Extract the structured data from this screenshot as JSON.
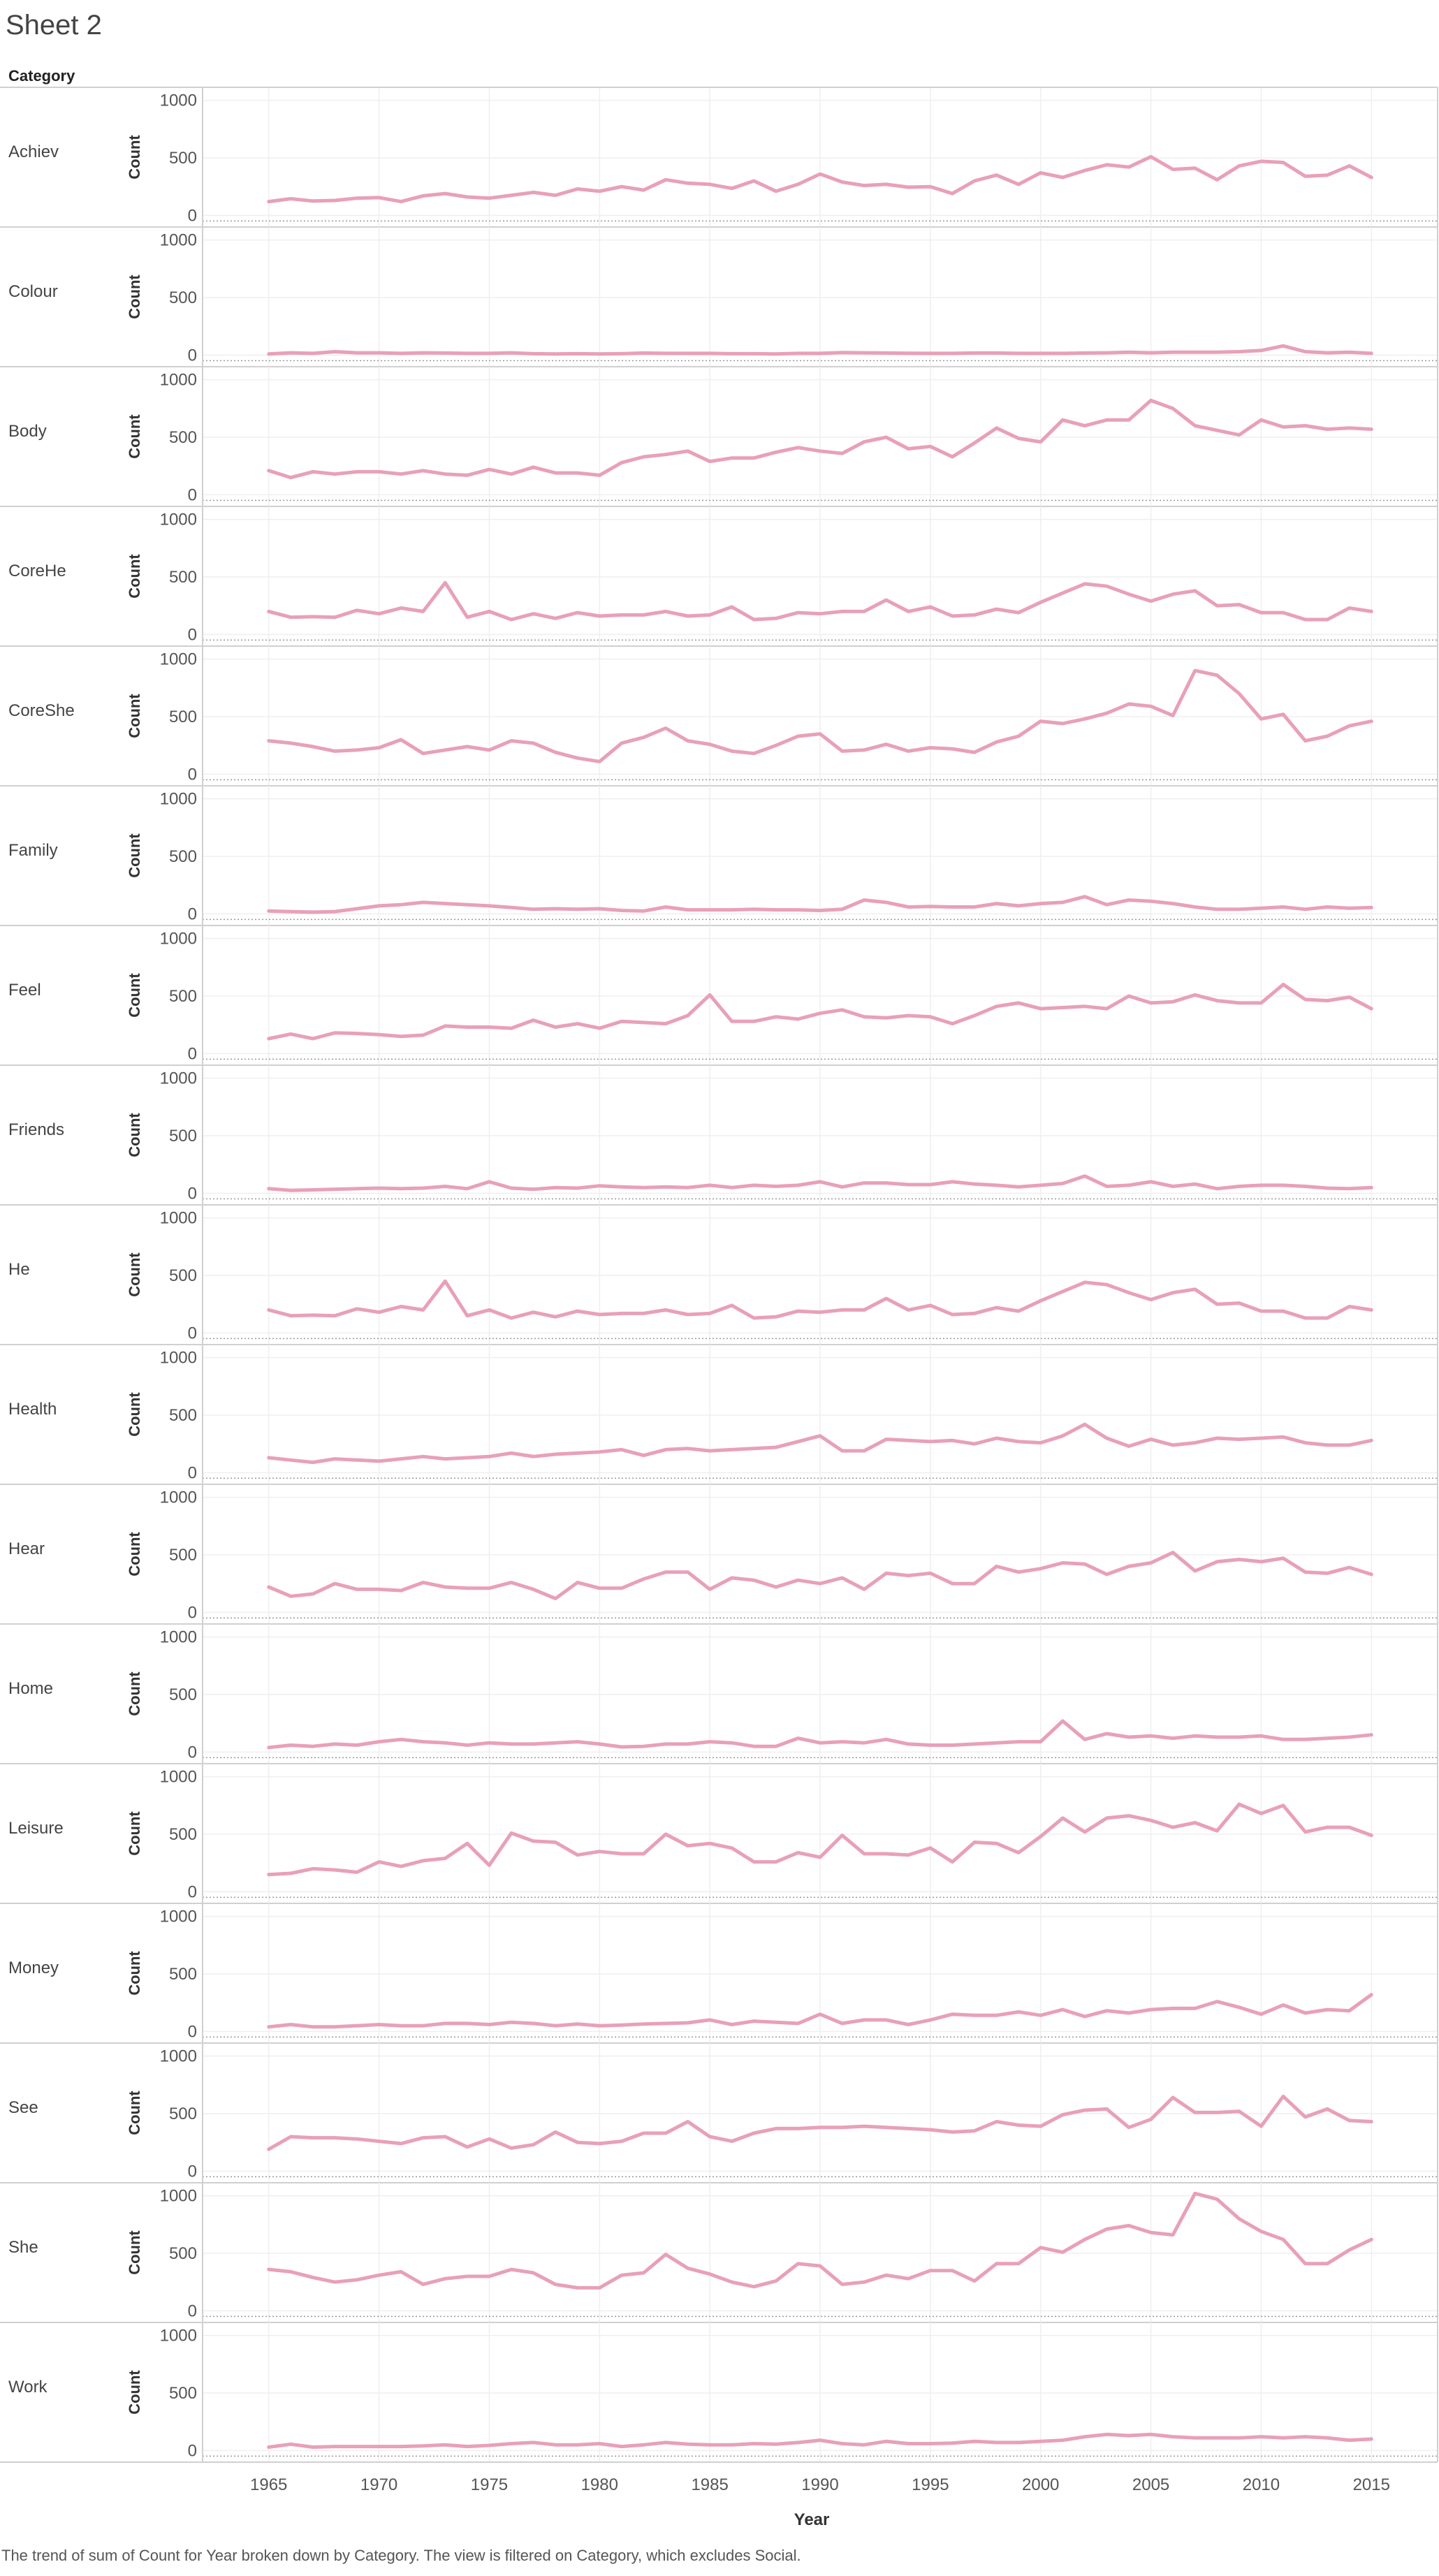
{
  "sheet_title": "Sheet 2",
  "caption": "The trend of sum of Count for Year broken down by Category. The view is filtered on Category, which excludes Social.",
  "colors": {
    "line": "#E8A0B8",
    "grid": "#EFEFEF",
    "border": "#D0D0D0",
    "zero_line": "#999999"
  },
  "chart_data": {
    "type": "line",
    "row_header": "Category",
    "xlabel": "Year",
    "ylabel": "Count",
    "xlim": [
      1962,
      2018
    ],
    "ylim": [
      -40,
      1040
    ],
    "xticks": [
      1965,
      1970,
      1975,
      1980,
      1985,
      1990,
      1995,
      2000,
      2005,
      2010,
      2015
    ],
    "yticks": [
      0,
      500,
      1000
    ],
    "grid": true,
    "x": [
      1965,
      1966,
      1967,
      1968,
      1969,
      1970,
      1971,
      1972,
      1973,
      1974,
      1975,
      1976,
      1977,
      1978,
      1979,
      1980,
      1981,
      1982,
      1983,
      1984,
      1985,
      1986,
      1987,
      1988,
      1989,
      1990,
      1991,
      1992,
      1993,
      1994,
      1995,
      1996,
      1997,
      1998,
      1999,
      2000,
      2001,
      2002,
      2003,
      2004,
      2005,
      2006,
      2007,
      2008,
      2009,
      2010,
      2011,
      2012,
      2013,
      2014,
      2015
    ],
    "series": [
      {
        "name": "Achiev",
        "values": [
          120,
          145,
          125,
          130,
          150,
          155,
          120,
          170,
          190,
          160,
          150,
          175,
          200,
          175,
          230,
          210,
          250,
          220,
          310,
          280,
          270,
          235,
          300,
          210,
          270,
          360,
          290,
          260,
          270,
          245,
          250,
          190,
          300,
          350,
          270,
          370,
          330,
          390,
          440,
          420,
          510,
          400,
          410,
          310,
          430,
          470,
          460,
          340,
          350,
          430,
          330
        ]
      },
      {
        "name": "Colour",
        "values": [
          10,
          20,
          15,
          30,
          20,
          20,
          15,
          20,
          18,
          15,
          15,
          20,
          12,
          10,
          12,
          10,
          12,
          18,
          15,
          15,
          15,
          12,
          12,
          10,
          15,
          15,
          22,
          20,
          18,
          16,
          15,
          15,
          18,
          18,
          15,
          15,
          15,
          18,
          20,
          25,
          20,
          25,
          25,
          25,
          30,
          40,
          80,
          30,
          20,
          25,
          15
        ]
      },
      {
        "name": "Body",
        "values": [
          210,
          150,
          200,
          180,
          200,
          200,
          180,
          210,
          180,
          170,
          220,
          180,
          240,
          190,
          190,
          170,
          280,
          330,
          350,
          380,
          290,
          320,
          320,
          370,
          410,
          380,
          360,
          460,
          500,
          400,
          420,
          330,
          450,
          580,
          490,
          460,
          650,
          600,
          650,
          650,
          820,
          750,
          600,
          560,
          520,
          650,
          590,
          600,
          570,
          580,
          570
        ]
      },
      {
        "name": "CoreHe",
        "values": [
          200,
          150,
          155,
          150,
          210,
          180,
          230,
          200,
          450,
          150,
          200,
          130,
          180,
          140,
          190,
          160,
          170,
          170,
          200,
          160,
          170,
          240,
          130,
          140,
          190,
          180,
          200,
          200,
          300,
          200,
          240,
          160,
          170,
          220,
          190,
          280,
          360,
          440,
          420,
          350,
          290,
          350,
          380,
          250,
          260,
          190,
          190,
          130,
          130,
          230,
          200
        ]
      },
      {
        "name": "CoreShe",
        "values": [
          290,
          270,
          240,
          200,
          210,
          230,
          300,
          180,
          210,
          240,
          210,
          290,
          270,
          190,
          140,
          110,
          270,
          320,
          400,
          290,
          260,
          200,
          180,
          250,
          330,
          350,
          200,
          210,
          260,
          200,
          230,
          220,
          190,
          280,
          330,
          460,
          440,
          480,
          530,
          610,
          590,
          510,
          900,
          860,
          700,
          480,
          520,
          290,
          330,
          420,
          460
        ]
      },
      {
        "name": "Family",
        "values": [
          25,
          20,
          15,
          20,
          45,
          70,
          80,
          100,
          90,
          80,
          70,
          55,
          40,
          45,
          40,
          45,
          30,
          25,
          60,
          35,
          35,
          35,
          40,
          35,
          35,
          30,
          40,
          120,
          100,
          60,
          65,
          60,
          60,
          90,
          70,
          90,
          100,
          150,
          80,
          120,
          110,
          90,
          60,
          40,
          40,
          50,
          60,
          40,
          60,
          50,
          55
        ]
      },
      {
        "name": "Feel",
        "values": [
          130,
          170,
          130,
          180,
          175,
          165,
          150,
          160,
          240,
          230,
          230,
          220,
          290,
          230,
          260,
          220,
          280,
          270,
          260,
          330,
          510,
          280,
          280,
          320,
          300,
          350,
          380,
          320,
          310,
          330,
          320,
          260,
          330,
          410,
          440,
          390,
          400,
          410,
          390,
          500,
          440,
          450,
          510,
          460,
          440,
          440,
          600,
          470,
          460,
          490,
          390
        ]
      },
      {
        "name": "Friends",
        "values": [
          40,
          25,
          30,
          35,
          40,
          45,
          40,
          45,
          60,
          40,
          100,
          45,
          35,
          50,
          45,
          65,
          55,
          50,
          55,
          50,
          70,
          50,
          70,
          60,
          70,
          100,
          55,
          90,
          90,
          75,
          75,
          100,
          80,
          70,
          55,
          70,
          85,
          150,
          60,
          70,
          100,
          60,
          80,
          40,
          60,
          70,
          70,
          60,
          45,
          40,
          50
        ]
      },
      {
        "name": "He",
        "values": [
          200,
          150,
          155,
          150,
          210,
          180,
          230,
          200,
          450,
          150,
          200,
          130,
          180,
          140,
          190,
          160,
          170,
          170,
          200,
          160,
          170,
          240,
          130,
          140,
          190,
          180,
          200,
          200,
          300,
          200,
          240,
          160,
          170,
          220,
          190,
          280,
          360,
          440,
          420,
          350,
          290,
          350,
          380,
          250,
          260,
          190,
          190,
          130,
          130,
          230,
          200
        ]
      },
      {
        "name": "Health",
        "values": [
          130,
          110,
          90,
          120,
          110,
          100,
          120,
          140,
          120,
          130,
          140,
          170,
          140,
          160,
          170,
          180,
          200,
          150,
          200,
          210,
          190,
          200,
          210,
          220,
          270,
          320,
          190,
          190,
          290,
          280,
          270,
          280,
          250,
          300,
          270,
          260,
          320,
          420,
          300,
          230,
          290,
          240,
          260,
          300,
          290,
          300,
          310,
          260,
          240,
          240,
          280
        ]
      },
      {
        "name": "Hear",
        "values": [
          220,
          140,
          160,
          250,
          200,
          200,
          190,
          260,
          220,
          210,
          210,
          260,
          200,
          120,
          260,
          210,
          210,
          290,
          350,
          350,
          200,
          300,
          280,
          220,
          280,
          250,
          300,
          200,
          340,
          320,
          340,
          250,
          250,
          400,
          350,
          380,
          430,
          420,
          330,
          400,
          430,
          520,
          360,
          440,
          460,
          440,
          470,
          350,
          340,
          390,
          330
        ]
      },
      {
        "name": "Home",
        "values": [
          40,
          60,
          50,
          70,
          60,
          90,
          110,
          90,
          80,
          60,
          80,
          70,
          70,
          80,
          90,
          70,
          45,
          50,
          70,
          70,
          90,
          80,
          50,
          50,
          120,
          80,
          90,
          80,
          110,
          70,
          60,
          60,
          70,
          80,
          90,
          90,
          270,
          110,
          160,
          130,
          140,
          120,
          140,
          130,
          130,
          140,
          110,
          110,
          120,
          130,
          150
        ]
      },
      {
        "name": "Leisure",
        "values": [
          150,
          160,
          200,
          190,
          170,
          260,
          220,
          270,
          290,
          420,
          230,
          510,
          440,
          430,
          320,
          350,
          330,
          330,
          500,
          400,
          420,
          380,
          260,
          260,
          340,
          300,
          490,
          330,
          330,
          320,
          380,
          260,
          430,
          420,
          340,
          480,
          640,
          520,
          640,
          660,
          620,
          560,
          600,
          530,
          760,
          680,
          750,
          520,
          560,
          560,
          490
        ]
      },
      {
        "name": "Money",
        "values": [
          40,
          60,
          40,
          40,
          50,
          60,
          50,
          50,
          70,
          70,
          60,
          80,
          70,
          50,
          65,
          50,
          55,
          65,
          70,
          75,
          100,
          60,
          90,
          80,
          70,
          150,
          70,
          100,
          100,
          60,
          100,
          150,
          140,
          140,
          170,
          140,
          190,
          130,
          180,
          160,
          190,
          200,
          200,
          260,
          210,
          150,
          230,
          160,
          190,
          180,
          320
        ]
      },
      {
        "name": "See",
        "values": [
          190,
          300,
          290,
          290,
          280,
          260,
          240,
          290,
          300,
          210,
          280,
          200,
          230,
          340,
          250,
          240,
          260,
          330,
          330,
          430,
          300,
          260,
          330,
          370,
          370,
          380,
          380,
          390,
          380,
          370,
          360,
          340,
          350,
          430,
          400,
          390,
          490,
          530,
          540,
          380,
          450,
          640,
          510,
          510,
          520,
          390,
          650,
          470,
          540,
          440,
          430
        ]
      },
      {
        "name": "She",
        "values": [
          360,
          340,
          290,
          250,
          270,
          310,
          340,
          230,
          280,
          300,
          300,
          360,
          330,
          230,
          200,
          200,
          310,
          330,
          490,
          370,
          320,
          250,
          210,
          260,
          410,
          390,
          230,
          250,
          310,
          280,
          350,
          350,
          260,
          410,
          410,
          550,
          510,
          620,
          710,
          740,
          680,
          660,
          1020,
          970,
          800,
          690,
          620,
          410,
          410,
          530,
          620
        ]
      },
      {
        "name": "Work",
        "values": [
          30,
          55,
          30,
          35,
          35,
          35,
          35,
          40,
          50,
          35,
          45,
          60,
          70,
          50,
          50,
          60,
          35,
          50,
          70,
          55,
          50,
          50,
          60,
          55,
          70,
          90,
          60,
          50,
          80,
          60,
          60,
          65,
          80,
          70,
          70,
          80,
          90,
          120,
          140,
          130,
          140,
          120,
          110,
          110,
          110,
          120,
          110,
          120,
          110,
          90,
          100
        ]
      }
    ]
  }
}
